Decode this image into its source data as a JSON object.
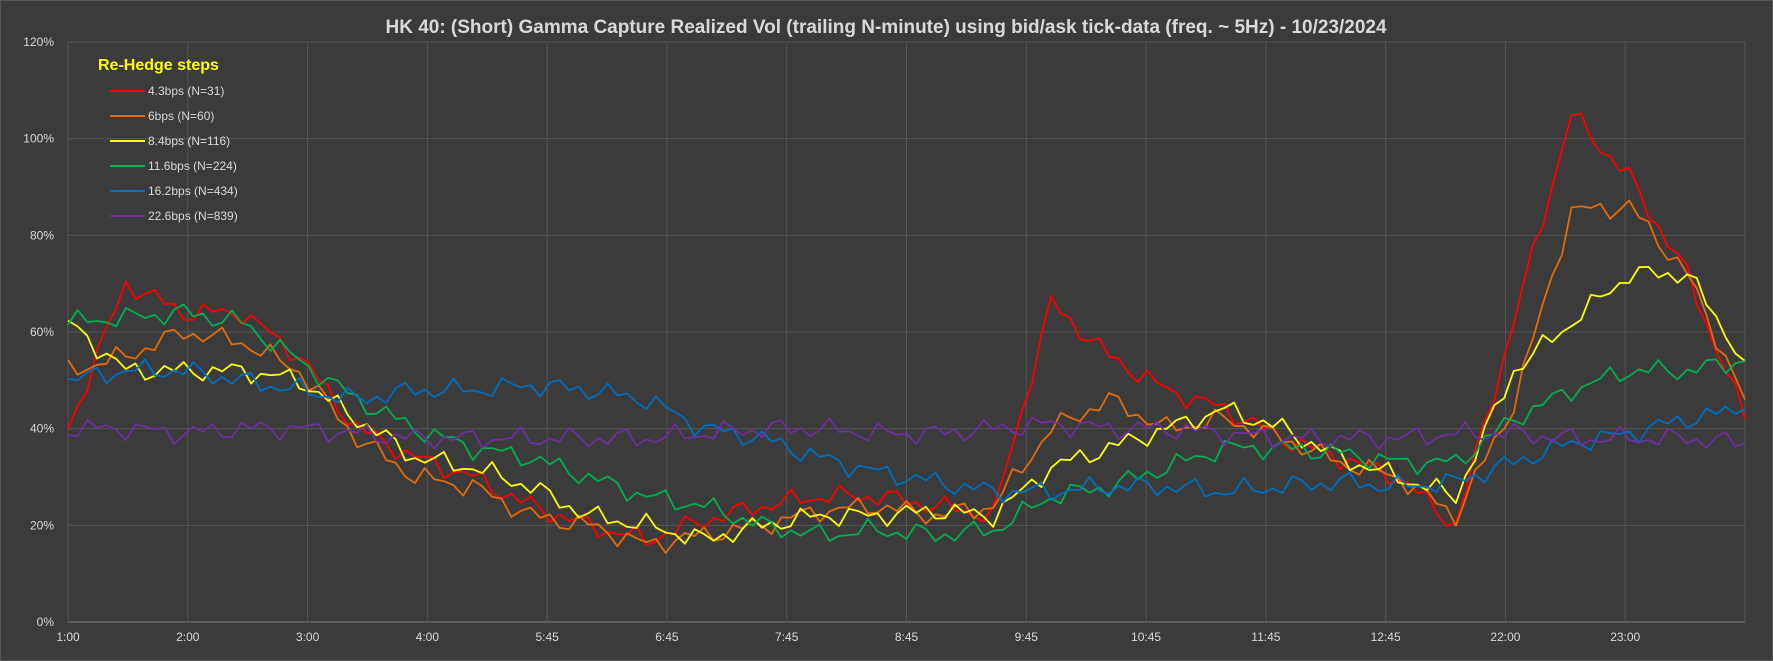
{
  "chart_data": {
    "type": "line",
    "title": "HK 40: (Short) Gamma Capture Realized Vol (trailing N-minute) using bid/ask tick-data (freq. ~ 5Hz) - 10/23/2024",
    "xlabel": "",
    "ylabel": "",
    "ylim": [
      0,
      1.2
    ],
    "y_ticks": [
      "0%",
      "20%",
      "40%",
      "60%",
      "80%",
      "100%",
      "120%"
    ],
    "x_ticks": [
      "1:00",
      "2:00",
      "3:00",
      "4:00",
      "5:45",
      "6:45",
      "7:45",
      "8:45",
      "9:45",
      "10:45",
      "11:45",
      "12:45",
      "22:00",
      "23:00"
    ],
    "grid": true,
    "legend_title": "Re-Hedge steps",
    "legend_position": "top-left",
    "x": [
      0,
      0.5,
      1,
      1.5,
      2,
      2.5,
      3,
      3.5,
      4,
      4.5,
      5,
      5.5,
      6,
      6.5,
      7,
      7.5,
      8,
      8.5,
      9,
      9.5,
      10,
      10.5,
      11,
      11.5,
      12,
      12.5,
      13,
      13.5,
      14,
      14.5
    ],
    "series": [
      {
        "name": "4.3bps  (N=31)",
        "color": "#ff0000",
        "values": [
          0.4,
          0.7,
          0.64,
          0.64,
          0.55,
          0.4,
          0.34,
          0.3,
          0.24,
          0.2,
          0.17,
          0.21,
          0.24,
          0.26,
          0.26,
          0.24,
          0.22,
          0.66,
          0.55,
          0.48,
          0.44,
          0.38,
          0.34,
          0.3,
          0.2,
          0.62,
          1.05,
          0.92,
          0.72,
          0.42
        ]
      },
      {
        "name": "6bps  (N=60)",
        "color": "#e36c0a",
        "values": [
          0.52,
          0.55,
          0.6,
          0.58,
          0.52,
          0.38,
          0.3,
          0.28,
          0.22,
          0.2,
          0.16,
          0.18,
          0.2,
          0.23,
          0.24,
          0.22,
          0.24,
          0.4,
          0.46,
          0.4,
          0.42,
          0.38,
          0.33,
          0.3,
          0.22,
          0.45,
          0.85,
          0.86,
          0.72,
          0.46
        ]
      },
      {
        "name": "8.4bps  (N=116)",
        "color": "#ffff00",
        "values": [
          0.62,
          0.52,
          0.52,
          0.52,
          0.5,
          0.42,
          0.34,
          0.32,
          0.28,
          0.22,
          0.2,
          0.17,
          0.2,
          0.22,
          0.22,
          0.23,
          0.22,
          0.32,
          0.36,
          0.4,
          0.44,
          0.4,
          0.34,
          0.3,
          0.26,
          0.52,
          0.62,
          0.72,
          0.72,
          0.54
        ]
      },
      {
        "name": "11.6bps  (N=224)",
        "color": "#00b050",
        "values": [
          0.62,
          0.63,
          0.64,
          0.62,
          0.54,
          0.46,
          0.4,
          0.36,
          0.34,
          0.3,
          0.26,
          0.24,
          0.2,
          0.18,
          0.19,
          0.18,
          0.19,
          0.26,
          0.28,
          0.32,
          0.36,
          0.36,
          0.35,
          0.33,
          0.33,
          0.42,
          0.48,
          0.52,
          0.52,
          0.54
        ]
      },
      {
        "name": "16.2bps  (N=434)",
        "color": "#0070c0",
        "values": [
          0.5,
          0.52,
          0.52,
          0.5,
          0.48,
          0.46,
          0.48,
          0.48,
          0.49,
          0.48,
          0.46,
          0.4,
          0.38,
          0.34,
          0.31,
          0.29,
          0.27,
          0.27,
          0.28,
          0.28,
          0.27,
          0.28,
          0.29,
          0.28,
          0.29,
          0.33,
          0.37,
          0.39,
          0.42,
          0.44
        ]
      },
      {
        "name": "22.6bps  (N=839)",
        "color": "#7030a0",
        "values": [
          0.4,
          0.4,
          0.39,
          0.4,
          0.4,
          0.39,
          0.38,
          0.38,
          0.38,
          0.38,
          0.38,
          0.39,
          0.4,
          0.4,
          0.39,
          0.39,
          0.4,
          0.41,
          0.4,
          0.4,
          0.39,
          0.38,
          0.38,
          0.38,
          0.39,
          0.39,
          0.38,
          0.38,
          0.38,
          0.37
        ]
      }
    ]
  }
}
